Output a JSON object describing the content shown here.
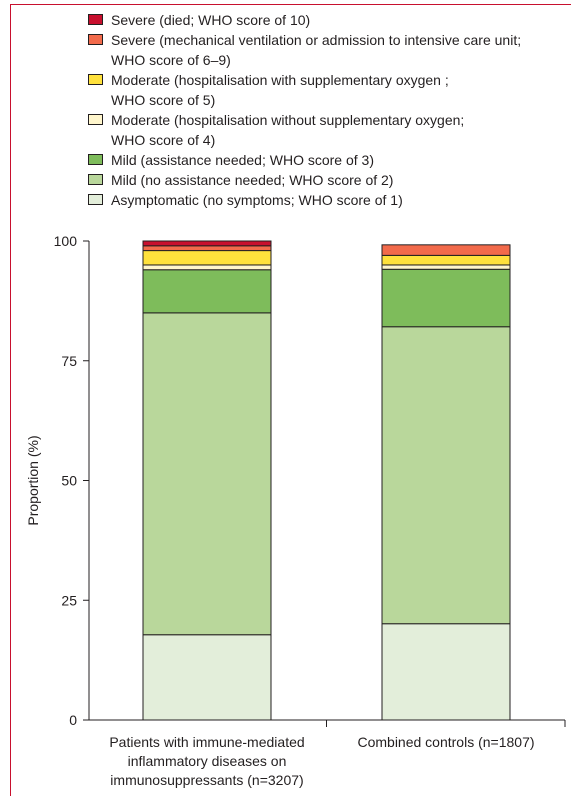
{
  "chart_data": {
    "type": "bar",
    "stacked": true,
    "ylabel": "Proportion (%)",
    "ylim": [
      0,
      100
    ],
    "yticks": [
      0,
      25,
      50,
      75,
      100
    ],
    "categories": [
      "Patients with immune-mediated\ninflammatory diseases on\nimmunosuppressants (n=3207)",
      "Combined controls (n=1807)"
    ],
    "series": [
      {
        "name": "Asymptomatic (no symptoms; WHO score of 1)",
        "color": "#e3eeda",
        "values": [
          17.8,
          20.1
        ]
      },
      {
        "name": "Mild (no assistance needed; WHO score of 2)",
        "color": "#b9d79b",
        "values": [
          67.2,
          62.0
        ]
      },
      {
        "name": "Mild (assistance needed; WHO score of 3)",
        "color": "#7ebc5b",
        "values": [
          9.0,
          12.0
        ]
      },
      {
        "name": "Moderate (hospitalisation without supplementary oxygen;\nWHO score of 4)",
        "color": "#fff6cc",
        "values": [
          1.0,
          0.9
        ]
      },
      {
        "name": "Moderate (hospitalisation with supplementary oxygen ;\nWHO score of 5)",
        "color": "#ffe13c",
        "values": [
          3.0,
          2.0
        ]
      },
      {
        "name": "Severe (mechanical ventilation or admission to intensive care unit;\nWHO score of 6–9)",
        "color": "#f26a4b",
        "values": [
          1.0,
          2.2
        ]
      },
      {
        "name": "Severe (died; WHO score of 10)",
        "color": "#c8102e",
        "values": [
          1.0,
          0.0
        ]
      }
    ]
  }
}
